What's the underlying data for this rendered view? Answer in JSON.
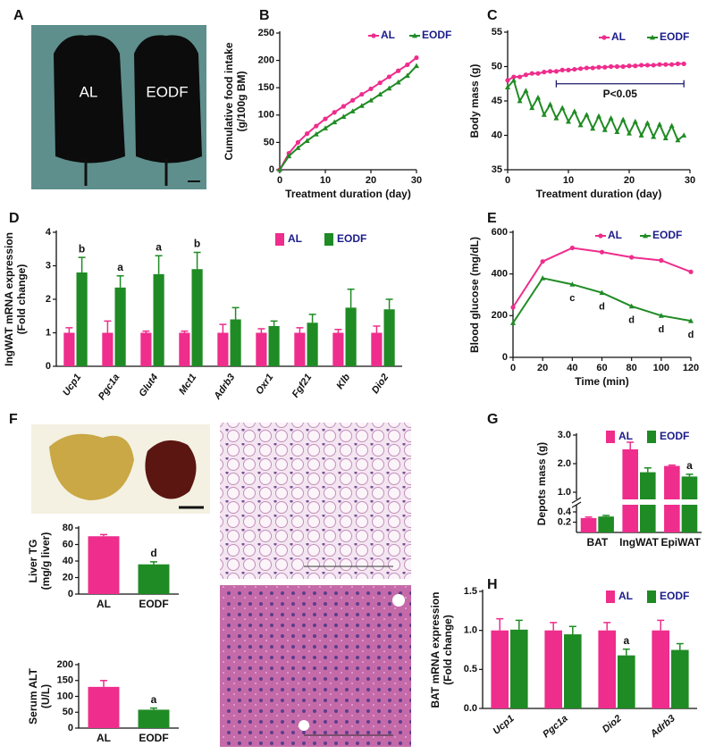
{
  "figure": {
    "panel_a": {
      "letter": "A",
      "photo_labels": [
        "AL",
        "EODF"
      ]
    },
    "panel_f": {
      "letter": "F"
    }
  },
  "chart_data": [
    {
      "type": "line",
      "panel": "B",
      "ylabel": [
        "Cumulative food intake",
        "(g/100g BM)"
      ],
      "xlabel": "Treatment duration (day)",
      "x": [
        0,
        2,
        4,
        6,
        8,
        10,
        12,
        14,
        16,
        18,
        20,
        22,
        24,
        26,
        28,
        30
      ],
      "xlim": [
        0,
        30
      ],
      "xticks": [
        0,
        10,
        20,
        30
      ],
      "ylim": [
        0,
        250
      ],
      "yticks": [
        0,
        50,
        100,
        150,
        200,
        250
      ],
      "series": [
        {
          "name": "AL",
          "color": "#ee2d8c",
          "marker": "circle",
          "values": [
            0,
            30,
            50,
            66,
            80,
            93,
            105,
            116,
            127,
            138,
            148,
            159,
            170,
            181,
            192,
            205
          ]
        },
        {
          "name": "EODF",
          "color": "#1f8b24",
          "marker": "triangle",
          "values": [
            0,
            25,
            40,
            53,
            65,
            76,
            87,
            97,
            107,
            117,
            127,
            138,
            149,
            160,
            172,
            190
          ]
        }
      ]
    },
    {
      "type": "line",
      "panel": "C",
      "ylabel": [
        "Body mass (g)"
      ],
      "xlabel": "Treatment duration (day)",
      "x": [
        0,
        1,
        2,
        3,
        4,
        5,
        6,
        7,
        8,
        9,
        10,
        11,
        12,
        13,
        14,
        15,
        16,
        17,
        18,
        19,
        20,
        21,
        22,
        23,
        24,
        25,
        26,
        27,
        28,
        29
      ],
      "xlim": [
        0,
        30
      ],
      "xticks": [
        0,
        10,
        20,
        30
      ],
      "ylim": [
        35,
        55
      ],
      "yticks": [
        35,
        40,
        45,
        50,
        55
      ],
      "bracket": [
        8,
        29
      ],
      "bracket_y": 47.5,
      "bracket_text": "P<0.05",
      "series": [
        {
          "name": "AL",
          "color": "#ee2d8c",
          "marker": "circle",
          "values": [
            48,
            48.5,
            48.5,
            48.8,
            49,
            49,
            49.2,
            49.3,
            49.3,
            49.5,
            49.5,
            49.6,
            49.7,
            49.8,
            49.8,
            49.9,
            49.9,
            50,
            50,
            50,
            50.1,
            50.1,
            50.2,
            50.2,
            50.2,
            50.3,
            50.3,
            50.3,
            50.4,
            50.4
          ]
        },
        {
          "name": "EODF",
          "color": "#1f8b24",
          "marker": "triangle",
          "values": [
            47,
            48,
            45,
            46.5,
            44,
            45.5,
            43,
            44.5,
            42.5,
            44,
            42,
            43.5,
            41.5,
            43,
            41,
            42.8,
            40.8,
            42.5,
            40.5,
            42.3,
            40.3,
            42,
            40,
            41.8,
            39.8,
            41.6,
            39.6,
            41.4,
            39.3,
            40
          ]
        }
      ]
    },
    {
      "type": "bar",
      "panel": "D",
      "ylabel": [
        "IngWAT mRNA expression",
        "(Fold change)"
      ],
      "category_style": "italic",
      "categories": [
        "Ucp1",
        "Pgc1a",
        "Glut4",
        "Mct1",
        "Adrb3",
        "Oxr1",
        "Fgf21",
        "Klb",
        "Dio2"
      ],
      "ylim": [
        0,
        4
      ],
      "yticks": [
        0,
        1,
        2,
        3,
        4
      ],
      "series": [
        {
          "name": "AL",
          "color": "#ee2d8c",
          "values": [
            1,
            1,
            1,
            1,
            1,
            1,
            1,
            1,
            1
          ],
          "errors": [
            0.15,
            0.35,
            0.05,
            0.05,
            0.25,
            0.12,
            0.15,
            0.1,
            0.2
          ]
        },
        {
          "name": "EODF",
          "color": "#1f8b24",
          "values": [
            2.8,
            2.35,
            2.75,
            2.9,
            1.4,
            1.2,
            1.3,
            1.75,
            1.7
          ],
          "errors": [
            0.45,
            0.35,
            0.55,
            0.5,
            0.35,
            0.15,
            0.25,
            0.55,
            0.3
          ],
          "labels": [
            "b",
            "a",
            "a",
            "b",
            null,
            null,
            null,
            null,
            null
          ]
        }
      ]
    },
    {
      "type": "line",
      "panel": "E",
      "ylabel": [
        "Blood glucose (mg/dL)"
      ],
      "xlabel": "Time (min)",
      "x": [
        0,
        20,
        40,
        60,
        80,
        100,
        120
      ],
      "xlim": [
        0,
        120
      ],
      "xticks": [
        0,
        20,
        40,
        60,
        80,
        100,
        120
      ],
      "ylim": [
        0,
        600
      ],
      "yticks": [
        0,
        200,
        400,
        600
      ],
      "series": [
        {
          "name": "AL",
          "color": "#ee2d8c",
          "marker": "circle",
          "values": [
            240,
            460,
            525,
            505,
            480,
            465,
            410
          ]
        },
        {
          "name": "EODF",
          "color": "#1f8b24",
          "marker": "triangle",
          "values": [
            165,
            380,
            350,
            310,
            245,
            200,
            175
          ],
          "labels": [
            null,
            null,
            "c",
            "d",
            "d",
            "d",
            "d"
          ]
        }
      ]
    },
    {
      "type": "bar",
      "ylabel": [
        "Liver TG",
        "(mg/g liver)"
      ],
      "categories": [
        "AL",
        "EODF"
      ],
      "values": [
        70,
        36
      ],
      "errors": [
        2,
        3
      ],
      "labels": [
        null,
        "d"
      ],
      "colors": [
        "#ee2d8c",
        "#1f8b24"
      ],
      "ylim": [
        0,
        80
      ],
      "yticks": [
        0,
        20,
        40,
        60,
        80
      ]
    },
    {
      "type": "bar",
      "ylabel": [
        "Serum ALT",
        "(U/L)"
      ],
      "categories": [
        "AL",
        "EODF"
      ],
      "values": [
        130,
        58
      ],
      "errors": [
        20,
        5
      ],
      "labels": [
        null,
        "a"
      ],
      "colors": [
        "#ee2d8c",
        "#1f8b24"
      ],
      "ylim": [
        0,
        200
      ],
      "yticks": [
        0,
        50,
        100,
        150,
        200
      ]
    },
    {
      "type": "bar",
      "panel": "G",
      "ylabel": [
        "Depots mass (g)"
      ],
      "categories": [
        "BAT",
        "IngWAT",
        "EpiWAT"
      ],
      "ylim": [
        0,
        3
      ],
      "ybreak": [
        0.4,
        1
      ],
      "yticks": [
        0.2,
        0.4,
        {
          "value": 1,
          "label": "1.0"
        },
        {
          "value": 2,
          "label": "2.0"
        },
        {
          "value": 3,
          "label": "3.0"
        }
      ],
      "series": [
        {
          "name": "AL",
          "color": "#ee2d8c",
          "values": [
            0.28,
            2.5,
            1.92
          ],
          "errors": [
            0.02,
            0.25,
            0.03
          ]
        },
        {
          "name": "EODF",
          "color": "#1f8b24",
          "values": [
            0.31,
            1.7,
            1.55
          ],
          "errors": [
            0.02,
            0.15,
            0.08
          ],
          "labels": [
            null,
            null,
            "a"
          ]
        }
      ]
    },
    {
      "type": "bar",
      "panel": "H",
      "ylabel": [
        "BAT mRNA expression",
        "(Fold change)"
      ],
      "category_style": "italic",
      "categories": [
        "Ucp1",
        "Pgc1a",
        "Dio2",
        "Adrb3"
      ],
      "ylim": [
        0,
        1.5
      ],
      "yticks": [
        {
          "value": 0,
          "label": "0.0"
        },
        0.5,
        {
          "value": 1,
          "label": "1.0"
        },
        1.5
      ],
      "series": [
        {
          "name": "AL",
          "color": "#ee2d8c",
          "values": [
            1,
            1,
            1,
            1
          ],
          "errors": [
            0.15,
            0.1,
            0.1,
            0.13
          ]
        },
        {
          "name": "EODF",
          "color": "#1f8b24",
          "values": [
            1.01,
            0.95,
            0.68,
            0.75
          ],
          "errors": [
            0.12,
            0.1,
            0.08,
            0.08
          ],
          "labels": [
            null,
            null,
            "a",
            null
          ]
        }
      ]
    }
  ]
}
